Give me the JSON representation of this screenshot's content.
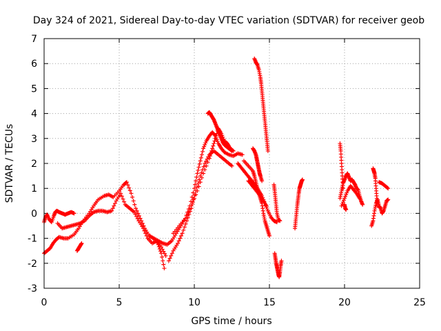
{
  "chart_data": {
    "type": "scatter",
    "title": "Day 324 of 2021, Sidereal Day-to-day VTEC variation (SDTVAR) for receiver geob",
    "xlabel": "GPS time / hours",
    "ylabel": "SDTVAR / TECUs",
    "xlim": [
      0,
      25
    ],
    "ylim": [
      -3,
      7
    ],
    "xticks": [
      "0",
      "5",
      "10",
      "15",
      "20",
      "25"
    ],
    "yticks": [
      "-3",
      "-2",
      "-1",
      "0",
      "1",
      "2",
      "3",
      "4",
      "5",
      "6",
      "7"
    ],
    "grid": true,
    "marker": "+",
    "color": "#ff0000",
    "series": [
      {
        "name": "SDTVAR",
        "segments": [
          {
            "x": [
              0.0,
              0.1,
              0.2,
              0.35,
              0.5,
              0.65,
              0.75,
              0.85,
              1.0,
              1.2,
              1.4,
              1.6,
              1.8,
              2.0
            ],
            "y": [
              -0.35,
              -0.15,
              -0.05,
              -0.25,
              -0.35,
              -0.1,
              0.05,
              0.1,
              0.05,
              0.0,
              -0.05,
              0.0,
              0.05,
              0.0
            ]
          },
          {
            "x": [
              0.0,
              0.2,
              0.4,
              0.6,
              0.8,
              1.0,
              1.3,
              1.6,
              2.0,
              2.3,
              2.6,
              3.0,
              3.3,
              3.6,
              4.0,
              4.3,
              4.6,
              5.0,
              5.3,
              5.5,
              5.8,
              6.1,
              6.4,
              6.7,
              7.0,
              7.3,
              7.6,
              7.8,
              8.0
            ],
            "y": [
              -1.6,
              -1.5,
              -1.4,
              -1.2,
              -1.05,
              -0.95,
              -1.0,
              -1.0,
              -0.85,
              -0.6,
              -0.3,
              0.0,
              0.3,
              0.55,
              0.7,
              0.75,
              0.65,
              0.9,
              1.15,
              1.25,
              0.8,
              0.2,
              -0.2,
              -0.6,
              -0.9,
              -1.0,
              -1.25,
              -1.6,
              -2.2
            ]
          },
          {
            "x": [
              0.9,
              1.2,
              1.5,
              1.8,
              2.1,
              2.4,
              2.7,
              3.0,
              3.3,
              3.6,
              3.9,
              4.2,
              4.5,
              4.8,
              5.1,
              5.4,
              5.7,
              6.0,
              6.3,
              6.6,
              6.9,
              7.2,
              7.5,
              7.8,
              8.1
            ],
            "y": [
              -0.4,
              -0.6,
              -0.55,
              -0.5,
              -0.45,
              -0.4,
              -0.3,
              -0.1,
              0.05,
              0.1,
              0.1,
              0.05,
              0.1,
              0.5,
              0.8,
              0.35,
              0.2,
              0.05,
              -0.3,
              -0.6,
              -1.0,
              -1.2,
              -1.1,
              -1.35,
              -1.7
            ]
          },
          {
            "x": [
              2.2,
              2.3,
              2.4,
              2.5
            ],
            "y": [
              -1.5,
              -1.4,
              -1.3,
              -1.2
            ]
          },
          {
            "x": [
              7.0,
              7.3,
              7.6,
              7.9,
              8.2,
              8.5,
              8.8,
              9.1,
              9.4,
              9.7,
              10.0,
              10.2,
              10.4,
              10.6,
              10.8,
              11.0,
              11.2,
              11.4,
              11.6,
              11.8,
              12.0,
              12.3,
              12.6,
              12.9,
              13.2
            ],
            "y": [
              -0.9,
              -1.0,
              -1.1,
              -1.2,
              -1.25,
              -1.1,
              -0.8,
              -0.5,
              -0.2,
              0.3,
              1.0,
              1.6,
              2.1,
              2.6,
              2.9,
              3.1,
              3.25,
              3.1,
              2.8,
              2.6,
              2.45,
              2.35,
              2.3,
              2.4,
              2.35
            ]
          },
          {
            "x": [
              8.3,
              8.6,
              8.9,
              9.2,
              9.5,
              9.8,
              10.1,
              10.4,
              10.7,
              11.0,
              11.3,
              11.6,
              11.9,
              12.2,
              12.5
            ],
            "y": [
              -1.9,
              -1.5,
              -1.2,
              -0.8,
              -0.3,
              0.2,
              0.9,
              1.5,
              2.0,
              2.35,
              2.5,
              2.35,
              2.2,
              2.05,
              1.9
            ]
          },
          {
            "x": [
              8.6,
              9.0,
              9.4,
              9.8,
              10.2,
              10.6,
              11.0,
              11.2,
              11.4,
              11.6,
              11.8,
              12.0,
              12.2,
              12.4,
              12.6
            ],
            "y": [
              -0.8,
              -0.5,
              -0.2,
              0.3,
              0.9,
              1.6,
              2.2,
              2.6,
              3.0,
              3.4,
              3.2,
              2.9,
              2.8,
              2.6,
              2.5
            ]
          },
          {
            "x": [
              10.9,
              11.0,
              11.1,
              11.2,
              11.3,
              11.4,
              11.5,
              11.6,
              11.7,
              11.8,
              11.9,
              12.0,
              12.1,
              12.2,
              12.3,
              12.5
            ],
            "y": [
              4.0,
              4.05,
              3.95,
              3.85,
              3.75,
              3.6,
              3.45,
              3.3,
              3.15,
              3.0,
              2.85,
              2.75,
              2.7,
              2.65,
              2.6,
              2.5
            ]
          },
          {
            "x": [
              12.9,
              13.1,
              13.3,
              13.5,
              13.7,
              13.9,
              14.1,
              14.3,
              14.5,
              14.7,
              14.9,
              15.1,
              15.3,
              15.5
            ],
            "y": [
              2.0,
              1.85,
              1.7,
              1.55,
              1.4,
              1.25,
              1.1,
              0.9,
              0.7,
              0.4,
              0.1,
              -0.15,
              -0.3,
              -0.35
            ]
          },
          {
            "x": [
              13.3,
              13.6,
              13.9,
              14.0,
              14.1,
              14.2,
              14.3,
              14.4,
              14.5,
              14.6,
              14.7,
              14.8,
              14.9,
              15.0
            ],
            "y": [
              2.1,
              1.9,
              1.7,
              1.5,
              1.25,
              1.0,
              0.8,
              0.6,
              0.4,
              0.0,
              -0.3,
              -0.5,
              -0.7,
              -0.9
            ]
          },
          {
            "x": [
              13.6,
              13.8,
              14.0,
              14.2,
              14.4,
              14.6,
              14.8
            ],
            "y": [
              1.3,
              1.15,
              1.0,
              0.85,
              0.7,
              0.5,
              0.3
            ]
          },
          {
            "x": [
              13.9,
              14.0,
              14.1,
              14.15,
              14.2,
              14.25,
              14.3,
              14.35,
              14.4,
              14.5
            ],
            "y": [
              2.6,
              2.5,
              2.35,
              2.2,
              2.05,
              1.9,
              1.75,
              1.6,
              1.5,
              1.3
            ]
          },
          {
            "x": [
              14.0,
              14.1,
              14.2,
              14.3,
              14.4,
              14.45,
              14.5,
              14.55,
              14.6,
              14.65,
              14.7,
              14.75,
              14.8,
              14.85,
              14.9
            ],
            "y": [
              6.2,
              6.05,
              5.95,
              5.75,
              5.45,
              5.2,
              4.9,
              4.6,
              4.3,
              4.0,
              3.7,
              3.4,
              3.1,
              2.8,
              2.5
            ]
          },
          {
            "x": [
              15.35,
              15.4,
              15.45,
              15.5,
              15.55,
              15.6,
              15.65,
              15.7,
              15.75,
              15.8
            ],
            "y": [
              -1.6,
              -1.8,
              -2.0,
              -2.15,
              -2.3,
              -2.45,
              -2.55,
              -2.35,
              -2.1,
              -1.9
            ]
          },
          {
            "x": [
              15.3,
              15.35,
              15.4,
              15.45,
              15.5,
              15.6,
              15.7
            ],
            "y": [
              1.15,
              0.9,
              0.6,
              0.3,
              0.0,
              -0.25,
              -0.3
            ]
          },
          {
            "x": [
              16.7,
              16.75,
              16.8,
              16.85,
              16.9,
              16.95,
              17.0,
              17.05,
              17.1,
              17.15,
              17.2
            ],
            "y": [
              -0.6,
              -0.3,
              0.0,
              0.3,
              0.55,
              0.8,
              1.0,
              1.1,
              1.2,
              1.3,
              1.35
            ]
          },
          {
            "x": [
              19.7,
              19.75,
              19.8,
              19.85,
              19.9
            ],
            "y": [
              2.8,
              2.5,
              2.0,
              1.5,
              1.0
            ]
          },
          {
            "x": [
              19.7,
              19.8,
              19.9,
              20.0,
              20.1,
              20.2,
              20.3,
              20.4,
              20.5,
              20.6,
              20.7,
              20.8,
              20.9,
              21.0,
              21.1,
              21.2
            ],
            "y": [
              0.6,
              0.9,
              1.2,
              1.35,
              1.5,
              1.6,
              1.45,
              1.3,
              1.35,
              1.25,
              1.15,
              1.0,
              0.95,
              0.7,
              0.5,
              0.35
            ]
          },
          {
            "x": [
              19.8,
              20.0,
              20.2,
              20.4,
              20.6,
              20.8,
              21.0
            ],
            "y": [
              0.3,
              0.6,
              0.9,
              1.1,
              0.95,
              0.8,
              0.6
            ]
          },
          {
            "x": [
              20.0,
              20.05,
              20.1
            ],
            "y": [
              0.35,
              0.2,
              0.15
            ]
          },
          {
            "x": [
              21.9,
              21.95,
              22.0,
              22.05,
              22.1,
              22.15,
              22.2
            ],
            "y": [
              1.8,
              1.7,
              1.6,
              1.4,
              1.0,
              0.6,
              0.3
            ]
          },
          {
            "x": [
              21.8,
              21.9,
              22.0,
              22.1,
              22.2,
              22.3,
              22.4,
              22.5,
              22.6,
              22.7,
              22.8,
              22.9
            ],
            "y": [
              -0.5,
              -0.3,
              0.1,
              0.4,
              0.55,
              0.3,
              0.2,
              0.0,
              0.1,
              0.3,
              0.5,
              0.55
            ]
          },
          {
            "x": [
              22.3,
              22.5,
              22.7,
              22.9
            ],
            "y": [
              1.25,
              1.2,
              1.1,
              1.0
            ]
          }
        ]
      }
    ]
  }
}
